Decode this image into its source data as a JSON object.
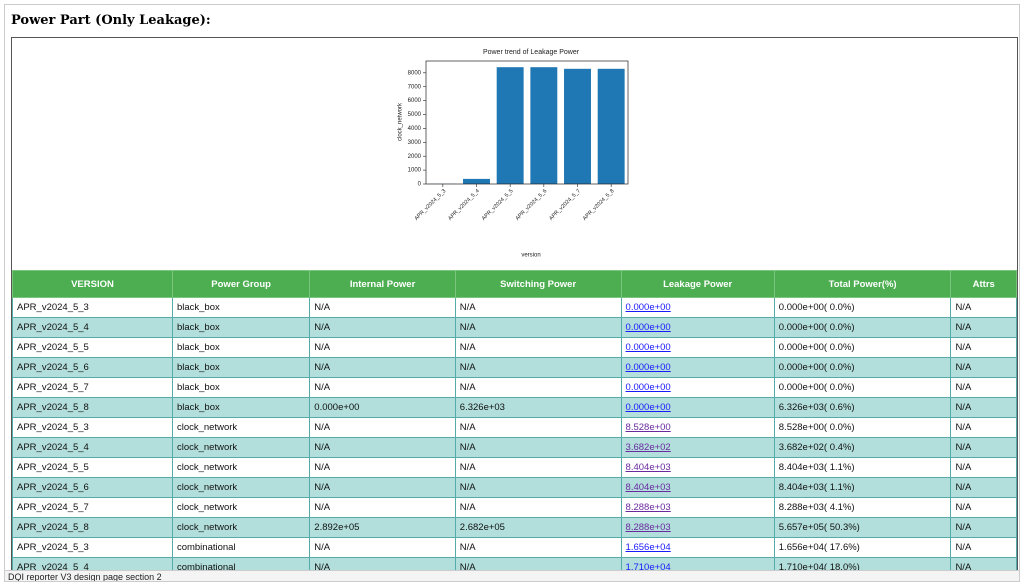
{
  "header": {
    "title": "Power Part (Only Leakage):"
  },
  "chart_data": {
    "type": "bar",
    "title": "Power trend of Leakage Power",
    "x_label": "version",
    "y_label": "clock_network",
    "categories": [
      "APR_v2024_5_3",
      "APR_v2024_5_4",
      "APR_v2024_5_5",
      "APR_v2024_5_6",
      "APR_v2024_5_7",
      "APR_v2024_5_8"
    ],
    "values": [
      8.528,
      368.2,
      8404,
      8404,
      8288,
      8288
    ],
    "color": "#1f77b4",
    "ylim": [
      0,
      8850
    ],
    "yticks": [
      0,
      1000,
      2000,
      3000,
      4000,
      5000,
      6000,
      7000,
      8000
    ]
  },
  "table": {
    "columns": [
      "VERSION",
      "Power Group",
      "Internal Power",
      "Switching Power",
      "Leakage Power",
      "Total Power(%)",
      "Attrs"
    ],
    "rows": [
      [
        "APR_v2024_5_3",
        "black_box",
        "N/A",
        "N/A",
        "0.000e+00",
        "0.000e+00( 0.0%)",
        "N/A"
      ],
      [
        "APR_v2024_5_4",
        "black_box",
        "N/A",
        "N/A",
        "0.000e+00",
        "0.000e+00( 0.0%)",
        "N/A"
      ],
      [
        "APR_v2024_5_5",
        "black_box",
        "N/A",
        "N/A",
        "0.000e+00",
        "0.000e+00( 0.0%)",
        "N/A"
      ],
      [
        "APR_v2024_5_6",
        "black_box",
        "N/A",
        "N/A",
        "0.000e+00",
        "0.000e+00( 0.0%)",
        "N/A"
      ],
      [
        "APR_v2024_5_7",
        "black_box",
        "N/A",
        "N/A",
        "0.000e+00",
        "0.000e+00( 0.0%)",
        "N/A"
      ],
      [
        "APR_v2024_5_8",
        "black_box",
        "0.000e+00",
        "6.326e+03",
        "0.000e+00",
        "6.326e+03( 0.6%)",
        "N/A"
      ],
      [
        "APR_v2024_5_3",
        "clock_network",
        "N/A",
        "N/A",
        "8.528e+00",
        "8.528e+00( 0.0%)",
        "N/A"
      ],
      [
        "APR_v2024_5_4",
        "clock_network",
        "N/A",
        "N/A",
        "3.682e+02",
        "3.682e+02( 0.4%)",
        "N/A"
      ],
      [
        "APR_v2024_5_5",
        "clock_network",
        "N/A",
        "N/A",
        "8.404e+03",
        "8.404e+03( 1.1%)",
        "N/A"
      ],
      [
        "APR_v2024_5_6",
        "clock_network",
        "N/A",
        "N/A",
        "8.404e+03",
        "8.404e+03( 1.1%)",
        "N/A"
      ],
      [
        "APR_v2024_5_7",
        "clock_network",
        "N/A",
        "N/A",
        "8.288e+03",
        "8.288e+03( 4.1%)",
        "N/A"
      ],
      [
        "APR_v2024_5_8",
        "clock_network",
        "2.892e+05",
        "2.682e+05",
        "8.288e+03",
        "5.657e+05( 50.3%)",
        "N/A"
      ],
      [
        "APR_v2024_5_3",
        "combinational",
        "N/A",
        "N/A",
        "1.656e+04",
        "1.656e+04( 17.6%)",
        "N/A"
      ],
      [
        "APR_v2024_5_4",
        "combinational",
        "N/A",
        "N/A",
        "1.710e+04",
        "1.710e+04( 18.0%)",
        "N/A"
      ]
    ]
  },
  "status": {
    "text": "DQI reporter V3 design page section 2"
  }
}
